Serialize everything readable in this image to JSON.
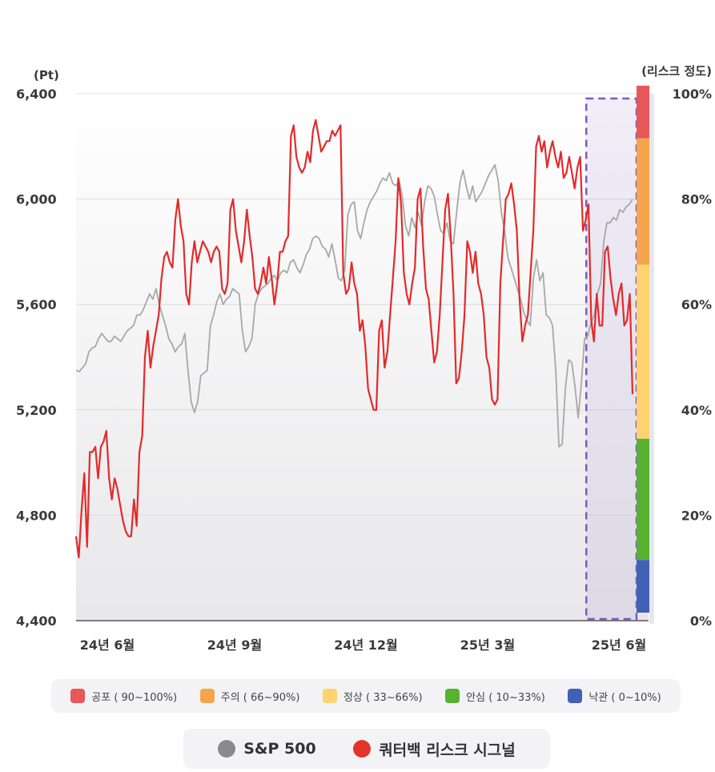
{
  "chart_data": {
    "type": "line",
    "x_labels": [
      "24년 6월",
      "24년 9월",
      "24년 12월",
      "25년 3월",
      "25년 6월"
    ],
    "left_axis": {
      "unit_label": "(Pt)",
      "ticks": [
        "6,400",
        "6,000",
        "5,600",
        "5,200",
        "4,800",
        "4,400"
      ],
      "range": [
        4400,
        6400
      ]
    },
    "right_axis": {
      "unit_label": "(리스크 정도)",
      "ticks": [
        "100%",
        "80%",
        "60%",
        "40%",
        "20%",
        "0%"
      ],
      "range": [
        0,
        100
      ]
    },
    "risk_bands": [
      {
        "label": "공포 ( 90~100%)",
        "from": 90,
        "to": 100,
        "color": "#e8575a"
      },
      {
        "label": "주의 ( 66~90%)",
        "from": 66,
        "to": 90,
        "color": "#f5a64a"
      },
      {
        "label": "정상 ( 33~66%)",
        "from": 33,
        "to": 66,
        "color": "#fdd36f"
      },
      {
        "label": "안심 ( 10~33%)",
        "from": 10,
        "to": 33,
        "color": "#56b230"
      },
      {
        "label": "낙관 ( 0~10%)",
        "from": 0,
        "to": 10,
        "color": "#4261b4"
      }
    ],
    "series": [
      {
        "name": "S&P 500",
        "color": "#a8a8a8",
        "axis": "left",
        "values": [
          5350,
          5345,
          5360,
          5375,
          5420,
          5435,
          5440,
          5470,
          5490,
          5475,
          5460,
          5460,
          5480,
          5470,
          5460,
          5480,
          5500,
          5510,
          5520,
          5560,
          5560,
          5580,
          5610,
          5640,
          5620,
          5660,
          5600,
          5560,
          5520,
          5470,
          5450,
          5420,
          5440,
          5450,
          5490,
          5350,
          5230,
          5190,
          5230,
          5330,
          5340,
          5350,
          5520,
          5560,
          5610,
          5640,
          5600,
          5620,
          5630,
          5660,
          5650,
          5640,
          5500,
          5420,
          5440,
          5470,
          5600,
          5640,
          5660,
          5670,
          5680,
          5700,
          5710,
          5690,
          5720,
          5730,
          5720,
          5760,
          5770,
          5740,
          5720,
          5750,
          5790,
          5810,
          5850,
          5860,
          5850,
          5820,
          5810,
          5780,
          5830,
          5770,
          5700,
          5690,
          5730,
          5940,
          5980,
          5990,
          5880,
          5850,
          5910,
          5960,
          5990,
          6010,
          6030,
          6060,
          6080,
          6070,
          6100,
          6060,
          6050,
          6070,
          6010,
          5900,
          5860,
          5930,
          5890,
          5950,
          5900,
          5990,
          6050,
          6040,
          6010,
          5940,
          5880,
          5870,
          5910,
          5840,
          5830,
          5950,
          6060,
          6110,
          6050,
          6000,
          6050,
          5990,
          6010,
          6030,
          6060,
          6090,
          6110,
          6130,
          6070,
          5950,
          5880,
          5780,
          5740,
          5700,
          5660,
          5620,
          5570,
          5540,
          5520,
          5700,
          5770,
          5690,
          5720,
          5560,
          5550,
          5520,
          5350,
          5060,
          5070,
          5280,
          5390,
          5380,
          5290,
          5170,
          5300,
          5470,
          5480,
          5530,
          5560,
          5640,
          5680,
          5840,
          5910,
          5910,
          5930,
          5920,
          5960,
          5950,
          5970,
          5980,
          6000
        ]
      },
      {
        "name": "쿼터백 리스크 시그널",
        "color": "#e32a2a",
        "axis": "right",
        "values": [
          16,
          12,
          21,
          28,
          14,
          32,
          32,
          33,
          27,
          33,
          34,
          36,
          27,
          23,
          27,
          25,
          22,
          19,
          17,
          16,
          16,
          23,
          18,
          32,
          35,
          50,
          55,
          48,
          52,
          55,
          58,
          65,
          69,
          70,
          68,
          67,
          76,
          80,
          75,
          72,
          62,
          60,
          68,
          72,
          68,
          70,
          72,
          71,
          70,
          68,
          70,
          71,
          70,
          63,
          62,
          64,
          78,
          80,
          74,
          71,
          68,
          72,
          78,
          73,
          69,
          63,
          62,
          64,
          67,
          64,
          69,
          65,
          60,
          64,
          70,
          70,
          72,
          73,
          92,
          94,
          88,
          86,
          85,
          86,
          89,
          87,
          93,
          95,
          92,
          89,
          90,
          91,
          91,
          93,
          92,
          93,
          94,
          66,
          62,
          63,
          68,
          64,
          62,
          55,
          57,
          52,
          44,
          42,
          40,
          40,
          55,
          57,
          48,
          51,
          58,
          65,
          72,
          84,
          79,
          66,
          62,
          60,
          64,
          67,
          80,
          82,
          71,
          63,
          61,
          55,
          49,
          51,
          58,
          68,
          78,
          81,
          73,
          62,
          45,
          46,
          51,
          58,
          72,
          70,
          66,
          70,
          64,
          62,
          58,
          50,
          48,
          42,
          41,
          42,
          64,
          72,
          80,
          81,
          83,
          79,
          74,
          61,
          53,
          56,
          58,
          66,
          74,
          90,
          92,
          89,
          91,
          86,
          89,
          91,
          88,
          86,
          89,
          84,
          85,
          88,
          85,
          82,
          86,
          88,
          74,
          76,
          79,
          57,
          53,
          62,
          56,
          56,
          70,
          71,
          65,
          61,
          58,
          62,
          64,
          56,
          57,
          62,
          43
        ]
      }
    ],
    "highlight_region": {
      "x_start_fraction": 0.922,
      "x_end_fraction": 1.0
    }
  },
  "legend": {
    "risk_levels": [
      {
        "label": "공포 ( 90~100%)",
        "color": "#e8575a"
      },
      {
        "label": "주의 ( 66~90%)",
        "color": "#f5a64a"
      },
      {
        "label": "정상 ( 33~66%)",
        "color": "#fdd36f"
      },
      {
        "label": "안심 ( 10~33%)",
        "color": "#56b230"
      },
      {
        "label": "낙관 ( 0~10%)",
        "color": "#4261b4"
      }
    ],
    "series": [
      {
        "label": "S&P 500",
        "color": "#8a8a8a"
      },
      {
        "label": "쿼터백 리스크 시그널",
        "color": "#e3342b"
      }
    ]
  }
}
